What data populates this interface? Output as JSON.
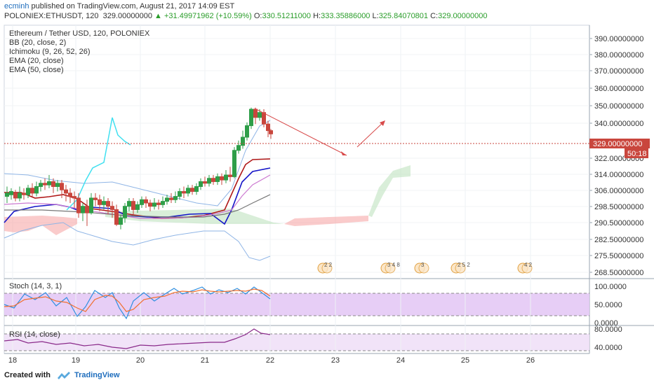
{
  "header": {
    "author": "ecminh",
    "published_text": "published on TradingView.com, August 21, 2017 14:09 EST",
    "symbol_line": "POLONIEX:ETHUSDT, 120",
    "last_price": "329.00000000",
    "change": "+31.49971962 (+10.59%)",
    "o_label": "O:",
    "o_value": "330.51211000",
    "h_label": "H:",
    "h_value": "333.35886000",
    "l_label": "L:",
    "l_value": "325.84070801",
    "c_label": "C:",
    "c_value": "329.00000000"
  },
  "legend": {
    "title": "Ethereum / Tether USD, 120, POLONIEX",
    "bb": "BB (20, close, 2)",
    "ichimoku": "Ichimoku (9, 26, 52, 26)",
    "ema20": "EMA (20, close)",
    "ema50": "EMA (50, close)"
  },
  "price_axis": {
    "ticks": [
      "390.00000000",
      "380.00000000",
      "370.00000000",
      "360.00000000",
      "350.00000000",
      "340.00000000",
      "322.00000000",
      "314.00000000",
      "306.00000000",
      "298.50000000",
      "290.50000000",
      "282.50000000",
      "275.50000000",
      "268.50000000"
    ],
    "current_price": "329.00000000",
    "countdown": "50:18"
  },
  "stoch": {
    "label": "Stoch (14, 3, 1)",
    "ticks": [
      "100.0000",
      "50.0000",
      "0.0000"
    ]
  },
  "rsi": {
    "label": "RSI (14, close)",
    "ticks": [
      "80.0000",
      "40.0000"
    ]
  },
  "time_axis": {
    "labels": [
      "18",
      "19",
      "20",
      "21",
      "22",
      "23",
      "24",
      "25",
      "26"
    ]
  },
  "events": [
    {
      "text": "2 2"
    },
    {
      "text": "3 4 8"
    },
    {
      "text": "3"
    },
    {
      "text": "2 5 2"
    },
    {
      "text": "4 2"
    }
  ],
  "footer": {
    "created_with": "Created with",
    "brand": "TradingView"
  },
  "colors": {
    "up": "#2e9e48",
    "down": "#c9463d",
    "bb": "#8fb5e6",
    "tenkan": "#1515c8",
    "kijun": "#b01818",
    "ema20": "#cc7ad1",
    "ema50": "#777777",
    "chikou": "#40e0f0",
    "stoch_k": "#2f8fe0",
    "stoch_d": "#f07030",
    "rsi": "#8a2a8a",
    "price_line": "#c9463d",
    "band": "#e3c5f5"
  }
}
